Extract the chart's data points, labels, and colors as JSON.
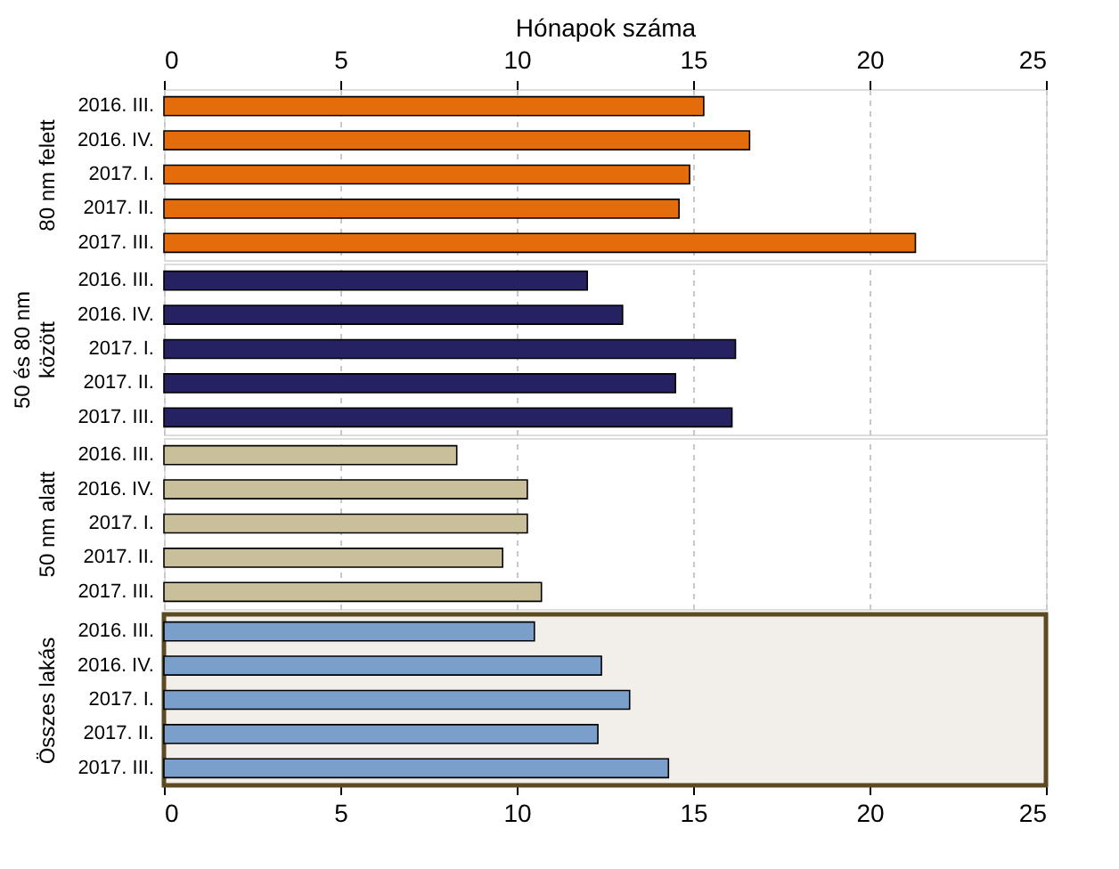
{
  "chart_data": [
    {
      "type": "bar",
      "orientation": "horizontal",
      "ylabel": "80 nm felett",
      "xlabel": "Hónapok száma",
      "xlim": [
        0,
        25
      ],
      "xticks": [
        0,
        5,
        10,
        15,
        20,
        25
      ],
      "grid": "x",
      "color": "#e46c0a",
      "categories": [
        "2016. III.",
        "2016. IV.",
        "2017. I.",
        "2017. II.",
        "2017. III."
      ],
      "values": [
        15.3,
        16.6,
        14.9,
        14.6,
        21.3
      ]
    },
    {
      "type": "bar",
      "orientation": "horizontal",
      "ylabel": "50 és 80 nm között",
      "xlim": [
        0,
        25
      ],
      "xticks": [
        0,
        5,
        10,
        15,
        20,
        25
      ],
      "tick_labels": "y",
      "grid": "x",
      "color": "#262262",
      "categories": [
        "2016. III.",
        "2016. IV.",
        "2017. I.",
        "2017. II.",
        "2017. III."
      ],
      "values": [
        12.0,
        13.0,
        16.2,
        14.5,
        16.1
      ]
    },
    {
      "type": "bar",
      "orientation": "horizontal",
      "ylabel": "50 nm alatt",
      "xlim": [
        0,
        25
      ],
      "xticks": [
        0,
        5,
        10,
        15,
        20,
        25
      ],
      "tick_labels": "y",
      "grid": "x",
      "color": "#c9c09b",
      "categories": [
        "2016. III.",
        "2016. IV.",
        "2017. I.",
        "2017. II.",
        "2017. III."
      ],
      "values": [
        8.3,
        10.3,
        10.3,
        9.6,
        10.7
      ]
    },
    {
      "type": "bar",
      "orientation": "horizontal",
      "ylabel": "Összes lakás",
      "xlim": [
        0,
        25
      ],
      "xticks": [
        0,
        5,
        10,
        15,
        20,
        25
      ],
      "grid": "x",
      "color": "#7a9fcb",
      "bands": [
        {
          "axis": "x",
          "from": 0,
          "to": 25,
          "label": null,
          "color": "#f2efea"
        }
      ],
      "categories": [
        "2016. III.",
        "2016. IV.",
        "2017. I.",
        "2017. II.",
        "2017. III."
      ],
      "values": [
        10.5,
        12.4,
        13.2,
        12.3,
        14.3
      ]
    }
  ]
}
